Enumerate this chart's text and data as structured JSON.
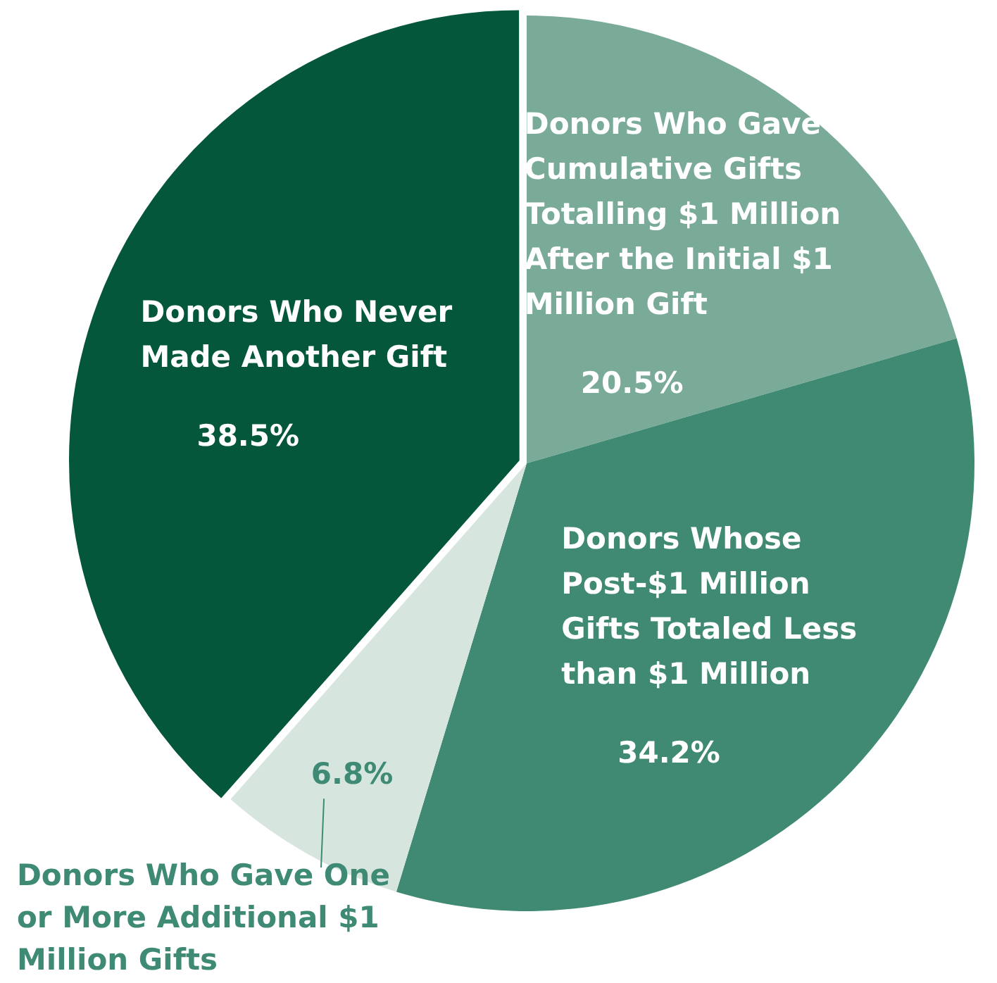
{
  "chart_data": {
    "type": "pie",
    "categories": [
      "Donors Who Gave Cumulative Gifts Totalling $1 Million After the Initial $1 Million Gift",
      "Donors Whose Post-$1 Million Gifts Totaled Less than $1 Million",
      "Donors Who Gave One or More Additional $1 Million Gifts",
      "Donors Who Never Made Another Gift"
    ],
    "values": [
      20.5,
      34.2,
      6.8,
      38.5
    ],
    "value_labels": [
      "20.5%",
      "34.2%",
      "6.8%",
      "38.5%"
    ],
    "colors": [
      "#7aab98",
      "#408a74",
      "#d6e6df",
      "#04573b"
    ],
    "legend": false
  }
}
